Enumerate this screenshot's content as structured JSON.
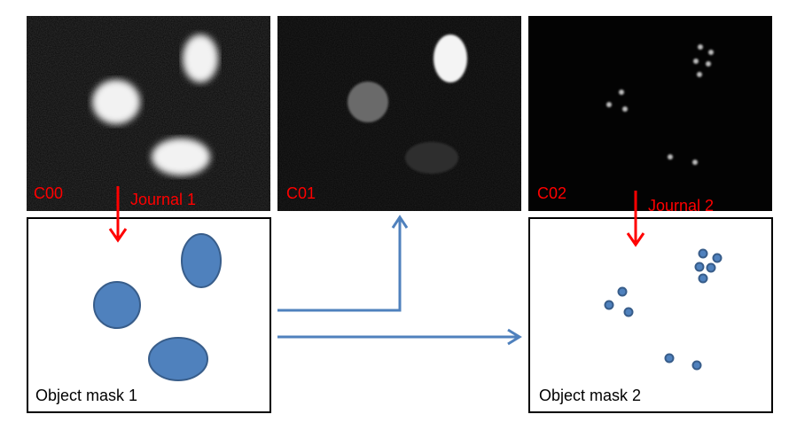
{
  "panels": {
    "c00": {
      "label": "C00"
    },
    "c01": {
      "label": "C01"
    },
    "c02": {
      "label": "C02"
    }
  },
  "journals": {
    "j1": {
      "label": "Journal 1"
    },
    "j2": {
      "label": "Journal 2"
    }
  },
  "masks": {
    "m1": {
      "label": "Object mask 1"
    },
    "m2": {
      "label": "Object mask 2"
    }
  },
  "colors": {
    "label_red": "#ff0000",
    "arrow_red": "#ff0000",
    "arrow_blue": "#4f81bd",
    "object_fill": "#4f81bd",
    "object_stroke": "#385d8a",
    "panel_bg": "#050505"
  }
}
